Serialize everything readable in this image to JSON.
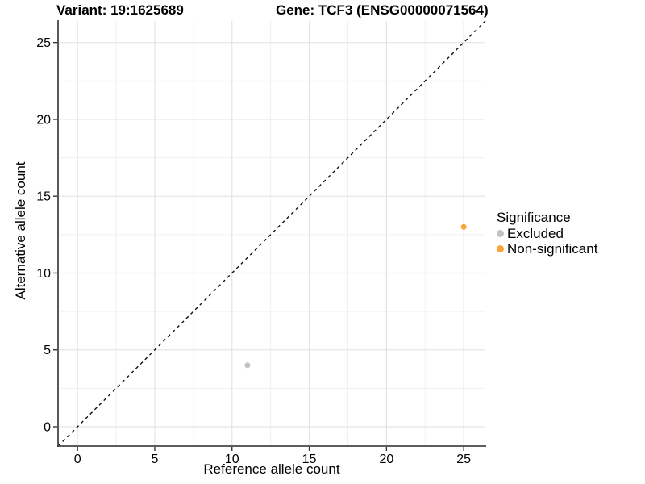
{
  "chart_data": {
    "type": "scatter",
    "title_left": "Variant: 19:1625689",
    "title_right": "Gene: TCF3 (ENSG00000071564)",
    "xlabel": "Reference allele count",
    "ylabel": "Alternative allele count",
    "xlim": [
      -1.26,
      26.4
    ],
    "ylim": [
      -1.26,
      26.4
    ],
    "x_ticks": [
      0,
      5,
      10,
      15,
      20,
      25
    ],
    "y_ticks": [
      0,
      5,
      10,
      15,
      20,
      25
    ],
    "x_minor_ticks": [
      2.5,
      7.5,
      12.5,
      17.5,
      22.5
    ],
    "y_minor_ticks": [
      2.5,
      7.5,
      12.5,
      17.5,
      22.5
    ],
    "grid": true,
    "identity_line": {
      "style": "dashed",
      "slope": 1,
      "intercept": 0
    },
    "series": [
      {
        "name": "Excluded",
        "color": "#C2C2C2",
        "points": [
          {
            "x": 11,
            "y": 4
          }
        ]
      },
      {
        "name": "Non-significant",
        "color": "#FAA43A",
        "points": [
          {
            "x": 25,
            "y": 13
          }
        ]
      }
    ],
    "legend": {
      "title": "Significance",
      "position": "right",
      "items": [
        {
          "label": "Excluded",
          "color": "#C2C2C2"
        },
        {
          "label": "Non-significant",
          "color": "#FAA43A"
        }
      ]
    }
  },
  "colors": {
    "background": "#FFFFFF",
    "axis_line": "#464646",
    "tick_mark": "#333333",
    "grid_major": "#E4E4E4",
    "grid_minor": "#F0F0F0",
    "identity_line": "#111111",
    "text": "#000000"
  }
}
